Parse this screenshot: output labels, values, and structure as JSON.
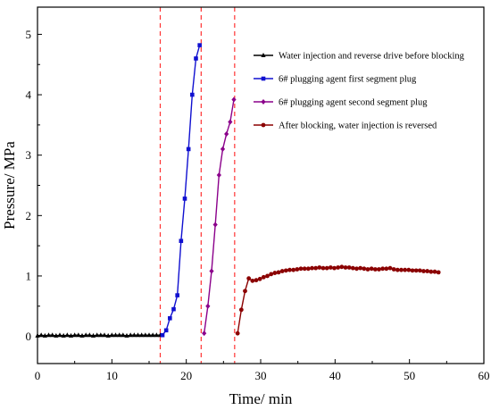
{
  "chart_data": {
    "type": "line",
    "xlabel": "Time/ min",
    "ylabel": "Pressure/ MPa",
    "xlim": [
      0,
      60
    ],
    "ylim": [
      -0.45,
      5.45
    ],
    "xticks": [
      0,
      10,
      20,
      30,
      40,
      50,
      60
    ],
    "yticks": [
      0,
      1,
      2,
      3,
      4,
      5
    ],
    "grid": false,
    "legend_position": "top-right",
    "vlines": [
      {
        "x": 16.5,
        "color": "#ff3333",
        "style": "dashed"
      },
      {
        "x": 22.0,
        "color": "#ff3333",
        "style": "dashed"
      },
      {
        "x": 26.5,
        "color": "#ff3333",
        "style": "dashed"
      }
    ],
    "series": [
      {
        "name": "Water injection and reverse drive before blocking",
        "color": "#000000",
        "marker": "triangle",
        "x": [
          0,
          0.5,
          1,
          1.5,
          2,
          2.5,
          3,
          3.5,
          4,
          4.5,
          5,
          5.5,
          6,
          6.5,
          7,
          7.5,
          8,
          8.5,
          9,
          9.5,
          10,
          10.5,
          11,
          11.5,
          12,
          12.5,
          13,
          13.5,
          14,
          14.5,
          15,
          15.5,
          16,
          16.5
        ],
        "y": [
          0.01,
          0.02,
          0.01,
          0.02,
          0.02,
          0.01,
          0.02,
          0.01,
          0.02,
          0.01,
          0.02,
          0.02,
          0.01,
          0.02,
          0.02,
          0.01,
          0.02,
          0.02,
          0.02,
          0.01,
          0.02,
          0.02,
          0.02,
          0.02,
          0.01,
          0.02,
          0.02,
          0.02,
          0.02,
          0.02,
          0.02,
          0.02,
          0.02,
          0.02
        ]
      },
      {
        "name": "6# plugging agent first segment plug",
        "color": "#1010d0",
        "marker": "square",
        "x": [
          16.8,
          17.3,
          17.8,
          18.3,
          18.8,
          19.3,
          19.8,
          20.3,
          20.8,
          21.3,
          21.8
        ],
        "y": [
          0.02,
          0.1,
          0.3,
          0.45,
          0.68,
          1.58,
          2.28,
          3.1,
          4.0,
          4.6,
          4.82
        ]
      },
      {
        "name": "6# plugging agent second segment plug",
        "color": "#8b008b",
        "marker": "diamond",
        "x": [
          22.4,
          22.9,
          23.4,
          23.9,
          24.4,
          24.9,
          25.4,
          25.9,
          26.4
        ],
        "y": [
          0.05,
          0.5,
          1.08,
          1.85,
          2.67,
          3.1,
          3.35,
          3.55,
          3.92
        ]
      },
      {
        "name": "After blocking, water injection is reversed",
        "color": "#8b0000",
        "marker": "circle",
        "x": [
          26.9,
          27.4,
          27.9,
          28.4,
          28.9,
          29.4,
          29.9,
          30.4,
          30.9,
          31.4,
          31.9,
          32.4,
          32.9,
          33.4,
          33.9,
          34.4,
          34.9,
          35.4,
          35.9,
          36.4,
          36.9,
          37.4,
          37.9,
          38.4,
          38.9,
          39.4,
          39.9,
          40.4,
          40.9,
          41.4,
          41.9,
          42.4,
          42.9,
          43.4,
          43.9,
          44.4,
          44.9,
          45.4,
          45.9,
          46.4,
          46.9,
          47.4,
          47.9,
          48.4,
          48.9,
          49.4,
          49.9,
          50.4,
          50.9,
          51.4,
          51.9,
          52.4,
          52.9,
          53.4,
          53.9
        ],
        "y": [
          0.05,
          0.44,
          0.75,
          0.96,
          0.92,
          0.93,
          0.95,
          0.98,
          1.0,
          1.03,
          1.05,
          1.06,
          1.08,
          1.09,
          1.1,
          1.1,
          1.11,
          1.12,
          1.12,
          1.12,
          1.13,
          1.13,
          1.14,
          1.13,
          1.13,
          1.14,
          1.13,
          1.14,
          1.15,
          1.14,
          1.14,
          1.13,
          1.12,
          1.13,
          1.12,
          1.11,
          1.12,
          1.11,
          1.11,
          1.12,
          1.12,
          1.13,
          1.11,
          1.1,
          1.1,
          1.1,
          1.1,
          1.09,
          1.09,
          1.09,
          1.08,
          1.08,
          1.07,
          1.07,
          1.06
        ]
      }
    ]
  }
}
